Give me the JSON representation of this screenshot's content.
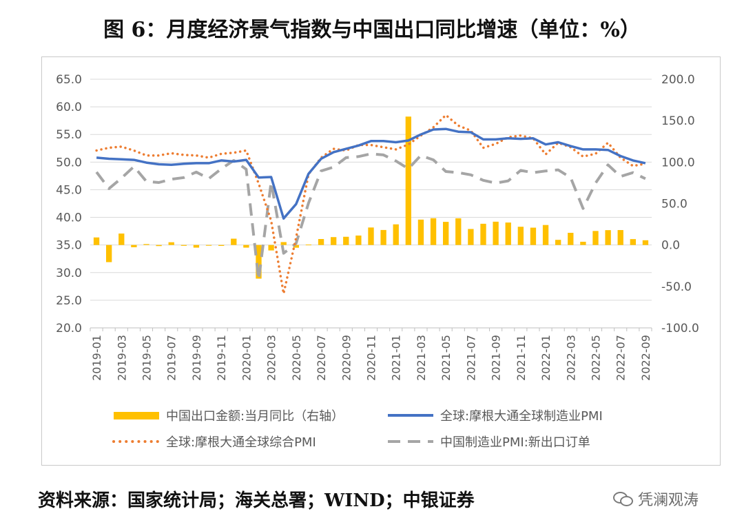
{
  "title": "图 6：月度经济景气指数与中国出口同比增速（单位：%）",
  "source": "资料来源：国家统计局；海关总署；WIND；中银证券",
  "watermark": {
    "text": "凭澜观涛",
    "icon": "wechat-icon"
  },
  "colors": {
    "export": "#FFC000",
    "mfg": "#4472C4",
    "comp": "#ED7D31",
    "neworder": "#A5A5A5"
  },
  "chart_data": {
    "type": "line",
    "x": [
      "2019-01",
      "2019-02",
      "2019-03",
      "2019-04",
      "2019-05",
      "2019-06",
      "2019-07",
      "2019-08",
      "2019-09",
      "2019-10",
      "2019-11",
      "2019-12",
      "2020-01",
      "2020-02",
      "2020-03",
      "2020-04",
      "2020-05",
      "2020-06",
      "2020-07",
      "2020-08",
      "2020-09",
      "2020-10",
      "2020-11",
      "2020-12",
      "2021-01",
      "2021-02",
      "2021-03",
      "2021-04",
      "2021-05",
      "2021-06",
      "2021-07",
      "2021-08",
      "2021-09",
      "2021-10",
      "2021-11",
      "2021-12",
      "2022-01",
      "2022-02",
      "2022-03",
      "2022-04",
      "2022-05",
      "2022-06",
      "2022-07",
      "2022-08",
      "2022-09"
    ],
    "x_tick_labels": [
      "2019-01",
      "2019-03",
      "2019-05",
      "2019-07",
      "2019-09",
      "2019-11",
      "2020-01",
      "2020-03",
      "2020-05",
      "2020-07",
      "2020-09",
      "2020-11",
      "2021-01",
      "2021-03",
      "2021-05",
      "2021-07",
      "2021-09",
      "2021-11",
      "2022-01",
      "2022-03",
      "2022-05",
      "2022-07",
      "2022-09"
    ],
    "y_left": {
      "ylim": [
        20,
        65
      ],
      "ticks": [
        "20.0",
        "25.0",
        "30.0",
        "35.0",
        "40.0",
        "45.0",
        "50.0",
        "55.0",
        "60.0",
        "65.0"
      ]
    },
    "y_right": {
      "ylim": [
        -100,
        200
      ],
      "ticks": [
        "-100.0",
        "-50.0",
        "0.0",
        "50.0",
        "100.0",
        "150.0",
        "200.0"
      ]
    },
    "grid": "horizontal",
    "legend_position": "bottom",
    "series": [
      {
        "name": "中国出口金额:当月同比（右轴）",
        "type": "bar",
        "axis": "right",
        "values": [
          9.1,
          -20.7,
          13.8,
          -2.7,
          1.1,
          -1.3,
          3.3,
          -1.0,
          -3.2,
          -0.9,
          -1.1,
          7.6,
          -3.2,
          -40.6,
          -6.6,
          3.5,
          -3.3,
          0.5,
          7.2,
          9.5,
          9.9,
          11.4,
          21.1,
          18.1,
          24.9,
          154.9,
          30.6,
          32.3,
          27.9,
          32.2,
          19.3,
          25.6,
          28.1,
          27.1,
          22.0,
          20.9,
          24.1,
          6.2,
          14.7,
          3.9,
          16.9,
          17.9,
          18.0,
          7.1,
          5.7
        ]
      },
      {
        "name": "全球:摩根大通全球制造业PMI",
        "type": "line",
        "axis": "left",
        "values": [
          50.8,
          50.6,
          50.5,
          50.4,
          49.9,
          49.6,
          49.5,
          49.7,
          49.8,
          49.8,
          50.3,
          50.1,
          50.4,
          47.2,
          47.3,
          39.8,
          42.4,
          47.9,
          50.6,
          51.8,
          52.4,
          53.0,
          53.8,
          53.8,
          53.6,
          53.9,
          55.0,
          55.9,
          56.0,
          55.5,
          55.4,
          54.1,
          54.1,
          54.3,
          54.2,
          54.3,
          53.2,
          53.6,
          52.9,
          52.3,
          52.3,
          52.2,
          51.1,
          50.3,
          49.8
        ]
      },
      {
        "name": "全球:摩根大通全球综合PMI",
        "type": "line",
        "axis": "left",
        "values": [
          52.1,
          52.6,
          52.8,
          52.1,
          51.2,
          51.2,
          51.6,
          51.3,
          51.2,
          50.8,
          51.5,
          51.7,
          52.1,
          46.1,
          39.4,
          26.2,
          36.3,
          47.8,
          50.8,
          52.4,
          52.1,
          53.1,
          53.1,
          52.7,
          52.3,
          53.2,
          54.8,
          56.3,
          58.5,
          56.6,
          55.7,
          52.6,
          53.3,
          54.5,
          54.8,
          54.3,
          51.4,
          53.5,
          52.7,
          51.0,
          51.5,
          53.5,
          50.8,
          49.3,
          49.7
        ]
      },
      {
        "name": "中国制造业PMI:新出口订单",
        "type": "line",
        "axis": "left",
        "values": [
          48.2,
          45.2,
          47.1,
          49.2,
          46.5,
          46.3,
          46.9,
          47.2,
          48.2,
          47.0,
          48.8,
          50.3,
          48.7,
          28.7,
          46.4,
          33.5,
          35.3,
          42.6,
          48.4,
          49.1,
          50.8,
          51.0,
          51.5,
          51.3,
          50.2,
          48.8,
          51.2,
          50.4,
          48.3,
          48.1,
          47.7,
          46.7,
          46.2,
          46.6,
          48.5,
          48.1,
          48.4,
          48.6,
          47.2,
          41.6,
          46.2,
          49.5,
          47.4,
          48.1,
          47.0
        ]
      }
    ]
  },
  "legend": [
    {
      "label": "中国出口金额:当月同比（右轴）",
      "style": "bar"
    },
    {
      "label": "全球:摩根大通全球制造业PMI",
      "style": "solid"
    },
    {
      "label": "全球:摩根大通全球综合PMI",
      "style": "dotted"
    },
    {
      "label": "中国制造业PMI:新出口订单",
      "style": "dashed"
    }
  ]
}
